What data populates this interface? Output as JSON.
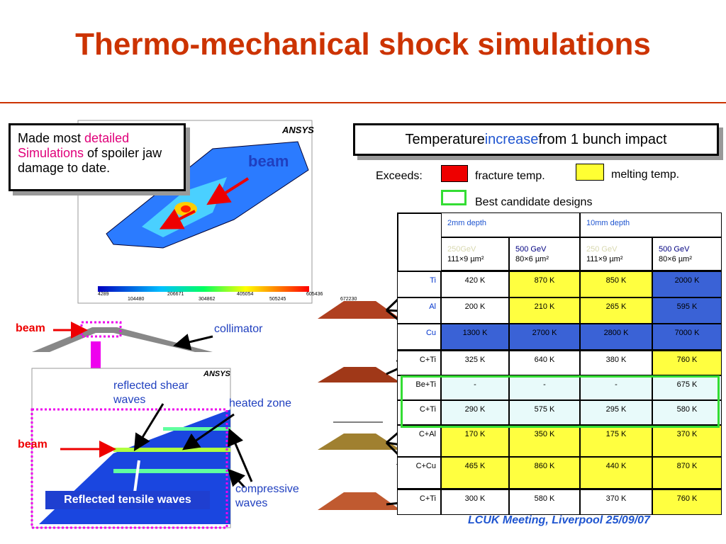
{
  "title": "Thermo-mechanical shock simulations",
  "callout": {
    "before": "Made most ",
    "highlight": "detailed Simulations",
    "after": " of spoiler jaw damage to date."
  },
  "heading": {
    "before": "Temperature ",
    "highlight": "increase",
    "after": " from 1 bunch impact"
  },
  "legend": {
    "exceeds": "Exceeds:",
    "fracture": "fracture temp.",
    "fracture_color": "#ee0000",
    "melting": "melting temp.",
    "melting_color": "#ffff33",
    "best": "Best candidate designs",
    "best_color": "#33dd33"
  },
  "ansys": {
    "logo": "ANSYS",
    "scale_top": [
      "4289",
      "206671",
      "405054",
      "605436"
    ],
    "scale_bottom": [
      "104480",
      "304862",
      "505245",
      "672230"
    ]
  },
  "labels": {
    "beam_top": "beam",
    "beam_left": "beam",
    "collimator": "collimator",
    "reflected_shear": "reflected shear waves",
    "heated_zone": "heated zone",
    "beam_bottom": "beam",
    "compressive": "compressive waves",
    "tensile": "Reflected tensile waves",
    "logo_bottom": "ANSYS"
  },
  "footer": "LCUK Meeting, Liverpool 25/09/07",
  "table": {
    "groups": [
      "2mm depth",
      "10mm depth"
    ],
    "columns": [
      {
        "energy": "250GeV",
        "energy_color": "#d8d8b0",
        "size": "111×9 µm²"
      },
      {
        "energy": "500 GeV",
        "energy_color": "#000080",
        "size": "80×6 µm²"
      },
      {
        "energy": "250 GeV",
        "energy_color": "#d8d8b0",
        "size": "111×9 µm²"
      },
      {
        "energy": "500 GeV",
        "energy_color": "#000080",
        "size": "80×6 µm²"
      }
    ],
    "rows": [
      {
        "label": "Ti",
        "label_color": "#0033cc",
        "cells": [
          "420 K",
          "870 K",
          "850 K",
          "2000 K"
        ],
        "colors": [
          "#ffffff",
          "#ffff40",
          "#ffff40",
          "#3a62d6"
        ]
      },
      {
        "label": "Al",
        "label_color": "#0033cc",
        "cells": [
          "200 K",
          "210 K",
          "265 K",
          "595 K"
        ],
        "colors": [
          "#ffffff",
          "#ffff40",
          "#ffff40",
          "#3a62d6"
        ]
      },
      {
        "label": "Cu",
        "label_color": "#0033cc",
        "cells": [
          "1300 K",
          "2700 K",
          "2800 K",
          "7000 K"
        ],
        "colors": [
          "#3a62d6",
          "#3a62d6",
          "#3a62d6",
          "#3a62d6"
        ]
      },
      {
        "label": "C+Ti",
        "label_color": "#000000",
        "cells": [
          "325 K",
          "640 K",
          "380 K",
          "760 K"
        ],
        "colors": [
          "#ffffff",
          "#ffffff",
          "#ffffff",
          "#ffff40"
        ]
      },
      {
        "label": "Be+Ti",
        "label_color": "#000000",
        "cells": [
          "-",
          "-",
          "-",
          "675 K"
        ],
        "colors": [
          "#e8fafa",
          "#e8fafa",
          "#e8fafa",
          "#e8fafa"
        ]
      },
      {
        "label": "C+Ti",
        "label_color": "#000000",
        "cells": [
          "290 K",
          "575 K",
          "295 K",
          "580 K"
        ],
        "colors": [
          "#e8fafa",
          "#e8fafa",
          "#e8fafa",
          "#e8fafa"
        ]
      },
      {
        "label": "C+Al",
        "label_color": "#000000",
        "cells": [
          "170 K",
          "350 K",
          "175 K",
          "370 K"
        ],
        "colors": [
          "#ffff40",
          "#ffff40",
          "#ffff40",
          "#ffff40"
        ]
      },
      {
        "label": "C+Cu",
        "label_color": "#000000",
        "cells": [
          "465 K",
          "860 K",
          "440 K",
          "870 K"
        ],
        "colors": [
          "#ffff40",
          "#ffff40",
          "#ffff40",
          "#ffff40"
        ]
      },
      {
        "label": "C+Ti",
        "label_color": "#000000",
        "cells": [
          "300 K",
          "580 K",
          "370 K",
          "760 K"
        ],
        "colors": [
          "#ffffff",
          "#ffffff",
          "#ffffff",
          "#ffff40"
        ]
      }
    ]
  }
}
